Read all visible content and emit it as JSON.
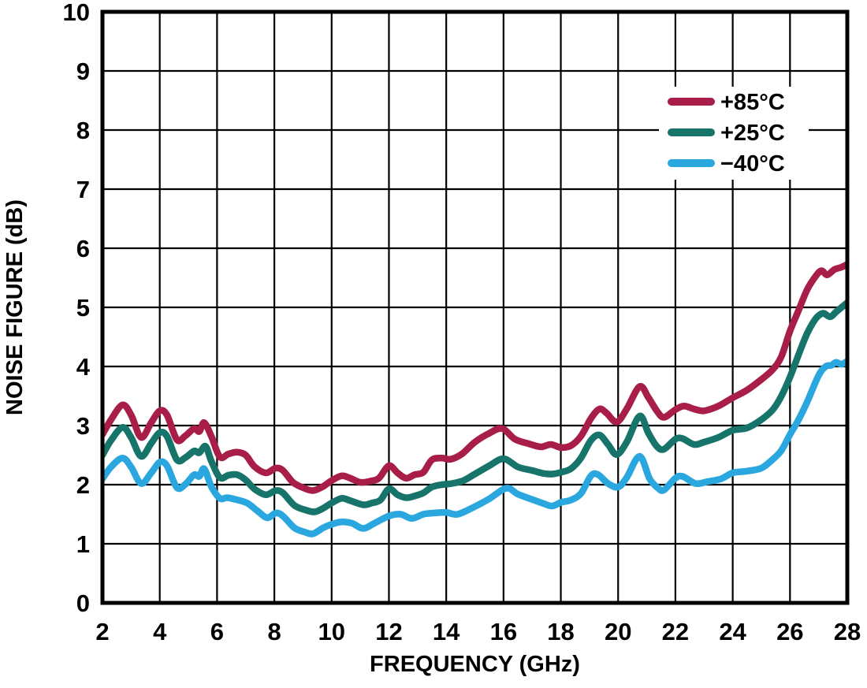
{
  "chart_data": {
    "type": "line",
    "title": "",
    "xlabel": "FREQUENCY (GHz)",
    "ylabel": "NOISE FIGURE (dB)",
    "xlim": [
      2,
      28
    ],
    "ylim": [
      0,
      10
    ],
    "xticks": [
      2,
      4,
      6,
      8,
      10,
      12,
      14,
      16,
      18,
      20,
      22,
      24,
      26,
      28
    ],
    "yticks": [
      0,
      1,
      2,
      3,
      4,
      5,
      6,
      7,
      8,
      9,
      10
    ],
    "grid": true,
    "legend_position": "top-right-inside",
    "series": [
      {
        "id": "plus-85c",
        "name": "+85°C",
        "color": "#A81E48",
        "points": [
          [
            2,
            2.85
          ],
          [
            2.3,
            3.1
          ],
          [
            2.7,
            3.35
          ],
          [
            3,
            3.18
          ],
          [
            3.35,
            2.8
          ],
          [
            3.7,
            3.05
          ],
          [
            4,
            3.25
          ],
          [
            4.25,
            3.18
          ],
          [
            4.6,
            2.76
          ],
          [
            4.9,
            2.83
          ],
          [
            5.2,
            2.95
          ],
          [
            5.38,
            2.9
          ],
          [
            5.55,
            3.05
          ],
          [
            5.8,
            2.82
          ],
          [
            6.1,
            2.47
          ],
          [
            6.4,
            2.52
          ],
          [
            6.7,
            2.55
          ],
          [
            7,
            2.5
          ],
          [
            7.3,
            2.31
          ],
          [
            7.7,
            2.2
          ],
          [
            8.05,
            2.28
          ],
          [
            8.3,
            2.24
          ],
          [
            8.65,
            2.04
          ],
          [
            9,
            1.95
          ],
          [
            9.35,
            1.9
          ],
          [
            9.7,
            1.97
          ],
          [
            10,
            2.07
          ],
          [
            10.35,
            2.15
          ],
          [
            10.65,
            2.11
          ],
          [
            11,
            2.04
          ],
          [
            11.35,
            2.06
          ],
          [
            11.65,
            2.11
          ],
          [
            12,
            2.32
          ],
          [
            12.3,
            2.2
          ],
          [
            12.6,
            2.11
          ],
          [
            12.9,
            2.17
          ],
          [
            13.2,
            2.21
          ],
          [
            13.5,
            2.42
          ],
          [
            13.85,
            2.45
          ],
          [
            14.15,
            2.43
          ],
          [
            14.55,
            2.52
          ],
          [
            15,
            2.72
          ],
          [
            15.5,
            2.87
          ],
          [
            15.95,
            2.95
          ],
          [
            16.4,
            2.77
          ],
          [
            16.9,
            2.69
          ],
          [
            17.3,
            2.64
          ],
          [
            17.65,
            2.68
          ],
          [
            18,
            2.63
          ],
          [
            18.35,
            2.66
          ],
          [
            18.7,
            2.82
          ],
          [
            19.05,
            3.12
          ],
          [
            19.35,
            3.28
          ],
          [
            19.6,
            3.21
          ],
          [
            19.95,
            3.06
          ],
          [
            20.3,
            3.28
          ],
          [
            20.75,
            3.66
          ],
          [
            21.05,
            3.48
          ],
          [
            21.35,
            3.25
          ],
          [
            21.6,
            3.14
          ],
          [
            22,
            3.27
          ],
          [
            22.3,
            3.33
          ],
          [
            22.65,
            3.28
          ],
          [
            23,
            3.25
          ],
          [
            23.5,
            3.33
          ],
          [
            24,
            3.47
          ],
          [
            24.5,
            3.6
          ],
          [
            25,
            3.78
          ],
          [
            25.4,
            3.95
          ],
          [
            25.7,
            4.17
          ],
          [
            26,
            4.6
          ],
          [
            26.3,
            4.95
          ],
          [
            26.6,
            5.3
          ],
          [
            26.9,
            5.53
          ],
          [
            27.1,
            5.62
          ],
          [
            27.3,
            5.55
          ],
          [
            27.55,
            5.64
          ],
          [
            27.8,
            5.68
          ],
          [
            28,
            5.73
          ]
        ]
      },
      {
        "id": "plus-25c",
        "name": "+25°C",
        "color": "#16746B",
        "points": [
          [
            2,
            2.5
          ],
          [
            2.3,
            2.75
          ],
          [
            2.7,
            2.97
          ],
          [
            3,
            2.8
          ],
          [
            3.35,
            2.48
          ],
          [
            3.7,
            2.7
          ],
          [
            4,
            2.88
          ],
          [
            4.25,
            2.82
          ],
          [
            4.6,
            2.42
          ],
          [
            4.9,
            2.46
          ],
          [
            5.2,
            2.57
          ],
          [
            5.38,
            2.54
          ],
          [
            5.6,
            2.65
          ],
          [
            5.8,
            2.4
          ],
          [
            6.1,
            2.12
          ],
          [
            6.4,
            2.16
          ],
          [
            6.7,
            2.17
          ],
          [
            7,
            2.08
          ],
          [
            7.3,
            1.93
          ],
          [
            7.7,
            1.83
          ],
          [
            8.05,
            1.9
          ],
          [
            8.3,
            1.86
          ],
          [
            8.7,
            1.65
          ],
          [
            9.1,
            1.57
          ],
          [
            9.4,
            1.54
          ],
          [
            9.7,
            1.6
          ],
          [
            10,
            1.69
          ],
          [
            10.35,
            1.77
          ],
          [
            10.65,
            1.73
          ],
          [
            11.1,
            1.66
          ],
          [
            11.4,
            1.69
          ],
          [
            11.7,
            1.74
          ],
          [
            12,
            1.93
          ],
          [
            12.3,
            1.83
          ],
          [
            12.6,
            1.78
          ],
          [
            12.9,
            1.81
          ],
          [
            13.2,
            1.86
          ],
          [
            13.5,
            1.96
          ],
          [
            13.85,
            2.0
          ],
          [
            14.2,
            2.02
          ],
          [
            14.6,
            2.07
          ],
          [
            15,
            2.18
          ],
          [
            15.5,
            2.32
          ],
          [
            16,
            2.44
          ],
          [
            16.5,
            2.3
          ],
          [
            17,
            2.24
          ],
          [
            17.4,
            2.19
          ],
          [
            17.7,
            2.18
          ],
          [
            18,
            2.21
          ],
          [
            18.35,
            2.27
          ],
          [
            18.7,
            2.45
          ],
          [
            19.05,
            2.75
          ],
          [
            19.35,
            2.84
          ],
          [
            19.65,
            2.68
          ],
          [
            19.95,
            2.51
          ],
          [
            20.3,
            2.72
          ],
          [
            20.75,
            3.16
          ],
          [
            21.05,
            2.88
          ],
          [
            21.35,
            2.65
          ],
          [
            21.6,
            2.6
          ],
          [
            22,
            2.77
          ],
          [
            22.25,
            2.78
          ],
          [
            22.65,
            2.68
          ],
          [
            23,
            2.72
          ],
          [
            23.5,
            2.8
          ],
          [
            24,
            2.92
          ],
          [
            24.5,
            2.96
          ],
          [
            25,
            3.1
          ],
          [
            25.4,
            3.27
          ],
          [
            25.7,
            3.5
          ],
          [
            26,
            3.82
          ],
          [
            26.3,
            4.2
          ],
          [
            26.6,
            4.56
          ],
          [
            26.9,
            4.81
          ],
          [
            27.15,
            4.9
          ],
          [
            27.4,
            4.84
          ],
          [
            27.6,
            4.92
          ],
          [
            27.8,
            5.0
          ],
          [
            28,
            5.08
          ]
        ]
      },
      {
        "id": "minus-40c",
        "name": "−40°C",
        "color": "#29A7DE",
        "points": [
          [
            2,
            2.1
          ],
          [
            2.3,
            2.3
          ],
          [
            2.7,
            2.45
          ],
          [
            3,
            2.3
          ],
          [
            3.35,
            2.02
          ],
          [
            3.7,
            2.2
          ],
          [
            4,
            2.38
          ],
          [
            4.25,
            2.32
          ],
          [
            4.6,
            1.95
          ],
          [
            4.9,
            2.01
          ],
          [
            5.2,
            2.17
          ],
          [
            5.38,
            2.14
          ],
          [
            5.55,
            2.27
          ],
          [
            5.8,
            1.97
          ],
          [
            6.1,
            1.77
          ],
          [
            6.35,
            1.78
          ],
          [
            6.65,
            1.75
          ],
          [
            7.05,
            1.69
          ],
          [
            7.4,
            1.56
          ],
          [
            7.75,
            1.44
          ],
          [
            8.05,
            1.52
          ],
          [
            8.3,
            1.47
          ],
          [
            8.7,
            1.27
          ],
          [
            9.05,
            1.2
          ],
          [
            9.35,
            1.17
          ],
          [
            9.7,
            1.27
          ],
          [
            10,
            1.33
          ],
          [
            10.35,
            1.37
          ],
          [
            10.7,
            1.35
          ],
          [
            11.1,
            1.26
          ],
          [
            11.5,
            1.35
          ],
          [
            12,
            1.47
          ],
          [
            12.4,
            1.5
          ],
          [
            12.8,
            1.43
          ],
          [
            13.2,
            1.5
          ],
          [
            13.55,
            1.52
          ],
          [
            14,
            1.53
          ],
          [
            14.4,
            1.5
          ],
          [
            15,
            1.63
          ],
          [
            15.5,
            1.76
          ],
          [
            16.1,
            1.94
          ],
          [
            16.5,
            1.84
          ],
          [
            17,
            1.75
          ],
          [
            17.4,
            1.68
          ],
          [
            17.7,
            1.64
          ],
          [
            18,
            1.7
          ],
          [
            18.35,
            1.74
          ],
          [
            18.7,
            1.85
          ],
          [
            19.05,
            2.15
          ],
          [
            19.3,
            2.17
          ],
          [
            19.65,
            2.02
          ],
          [
            20,
            1.96
          ],
          [
            20.3,
            2.12
          ],
          [
            20.75,
            2.48
          ],
          [
            21.1,
            2.1
          ],
          [
            21.4,
            1.94
          ],
          [
            21.6,
            1.91
          ],
          [
            22,
            2.11
          ],
          [
            22.25,
            2.14
          ],
          [
            22.7,
            2.02
          ],
          [
            23.1,
            2.05
          ],
          [
            23.6,
            2.1
          ],
          [
            24,
            2.2
          ],
          [
            24.5,
            2.23
          ],
          [
            25,
            2.28
          ],
          [
            25.4,
            2.43
          ],
          [
            25.7,
            2.58
          ],
          [
            26,
            2.85
          ],
          [
            26.3,
            3.1
          ],
          [
            26.6,
            3.4
          ],
          [
            27,
            3.85
          ],
          [
            27.25,
            4.0
          ],
          [
            27.45,
            4.02
          ],
          [
            27.6,
            4.07
          ],
          [
            27.8,
            4.04
          ],
          [
            28,
            4.09
          ]
        ]
      }
    ]
  }
}
